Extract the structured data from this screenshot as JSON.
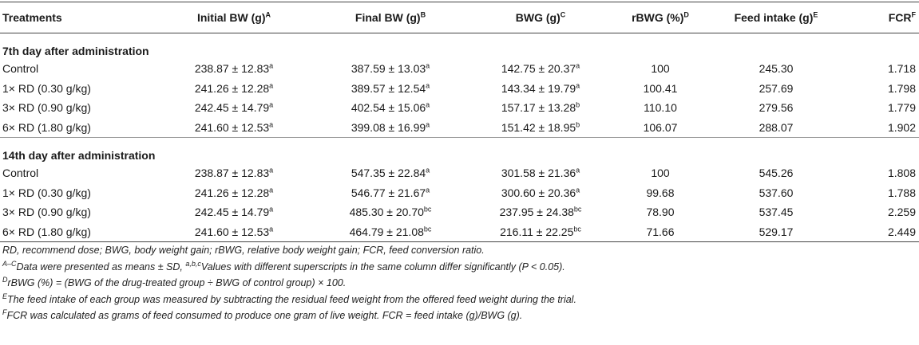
{
  "table": {
    "headers": [
      {
        "label": "Treatments",
        "sup": ""
      },
      {
        "label": "Initial BW (g)",
        "sup": "A"
      },
      {
        "label": "Final BW (g)",
        "sup": "B"
      },
      {
        "label": "BWG (g)",
        "sup": "C"
      },
      {
        "label": "rBWG (%)",
        "sup": "D"
      },
      {
        "label": "Feed intake (g)",
        "sup": "E"
      },
      {
        "label": "FCR",
        "sup": "F"
      }
    ],
    "sections": [
      {
        "title": "7th day after administration",
        "rows": [
          {
            "treatment": "Control",
            "initial": "238.87 ± 12.83",
            "initial_sup": "a",
            "final": "387.59 ± 13.03",
            "final_sup": "a",
            "bwg": "142.75 ± 20.37",
            "bwg_sup": "a",
            "rbwg": "100",
            "feed": "245.30",
            "fcr": "1.718"
          },
          {
            "treatment": "1× RD (0.30 g/kg)",
            "initial": "241.26 ± 12.28",
            "initial_sup": "a",
            "final": "389.57 ± 12.54",
            "final_sup": "a",
            "bwg": "143.34 ± 19.79",
            "bwg_sup": "a",
            "rbwg": "100.41",
            "feed": "257.69",
            "fcr": "1.798"
          },
          {
            "treatment": "3× RD (0.90 g/kg)",
            "initial": "242.45 ± 14.79",
            "initial_sup": "a",
            "final": "402.54 ± 15.06",
            "final_sup": "a",
            "bwg": "157.17 ± 13.28",
            "bwg_sup": "b",
            "rbwg": "110.10",
            "feed": "279.56",
            "fcr": "1.779"
          },
          {
            "treatment": "6× RD (1.80 g/kg)",
            "initial": "241.60 ± 12.53",
            "initial_sup": "a",
            "final": "399.08 ± 16.99",
            "final_sup": "a",
            "bwg": "151.42 ± 18.95",
            "bwg_sup": "b",
            "rbwg": "106.07",
            "feed": "288.07",
            "fcr": "1.902"
          }
        ]
      },
      {
        "title": "14th day after administration",
        "rows": [
          {
            "treatment": "Control",
            "initial": "238.87 ± 12.83",
            "initial_sup": "a",
            "final": "547.35 ± 22.84",
            "final_sup": "a",
            "bwg": "301.58 ± 21.36",
            "bwg_sup": "a",
            "rbwg": "100",
            "feed": "545.26",
            "fcr": "1.808"
          },
          {
            "treatment": "1× RD (0.30 g/kg)",
            "initial": "241.26 ± 12.28",
            "initial_sup": "a",
            "final": "546.77 ± 21.67",
            "final_sup": "a",
            "bwg": "300.60 ± 20.36",
            "bwg_sup": "a",
            "rbwg": "99.68",
            "feed": "537.60",
            "fcr": "1.788"
          },
          {
            "treatment": "3× RD (0.90 g/kg)",
            "initial": "242.45 ± 14.79",
            "initial_sup": "a",
            "final": "485.30 ± 20.70",
            "final_sup": "bc",
            "bwg": "237.95 ± 24.38",
            "bwg_sup": "bc",
            "rbwg": "78.90",
            "feed": "537.45",
            "fcr": "2.259"
          },
          {
            "treatment": "6× RD (1.80 g/kg)",
            "initial": "241.60 ± 12.53",
            "initial_sup": "a",
            "final": "464.79 ± 21.08",
            "final_sup": "bc",
            "bwg": "216.11 ± 22.25",
            "bwg_sup": "bc",
            "rbwg": "71.66",
            "feed": "529.17",
            "fcr": "2.449"
          }
        ]
      }
    ]
  },
  "notes": {
    "abbrev": "RD, recommend dose; BWG, body weight gain; rBWG, relative body weight gain; FCR, feed conversion ratio.",
    "n1_sup": "A–C",
    "n1_text": "Data were presented as means ± SD, ",
    "n1_sup2": "a,b,c",
    "n1_text2": "Values with different superscripts in the same column differ significantly (P < 0.05).",
    "n2_sup": "D",
    "n2_text": "rBWG (%) = (BWG of the drug-treated group ÷ BWG of control group) × 100.",
    "n3_sup": "E",
    "n3_text": "The feed intake of each group was measured by subtracting the residual feed weight from the offered feed weight during the trial.",
    "n4_sup": "F",
    "n4_text": "FCR was calculated as grams of feed consumed to produce one gram of live weight. FCR = feed intake (g)/BWG (g)."
  }
}
